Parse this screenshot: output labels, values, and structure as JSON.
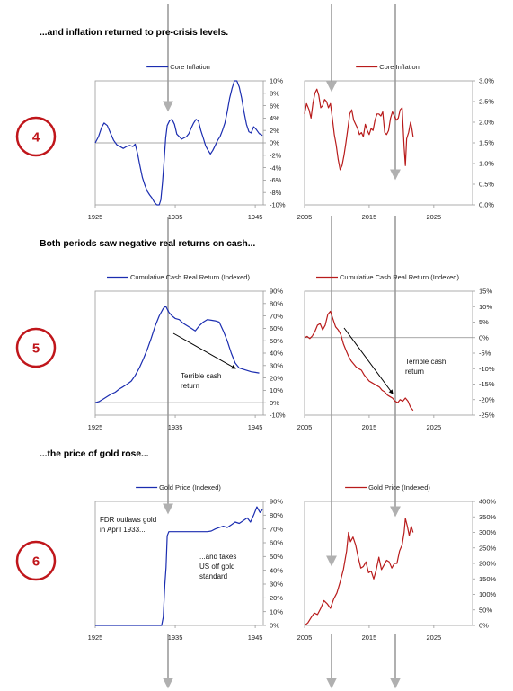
{
  "headings": {
    "h1": "...and inflation returned to pre-crisis levels.",
    "h2": "Both periods saw negative real returns on cash...",
    "h3": "...the price of gold rose..."
  },
  "badges": [
    "4",
    "5",
    "6"
  ],
  "colors": {
    "left": "#1b2db0",
    "right": "#b81b1b",
    "guide": "#b0b0b0",
    "badge": "#c0161b"
  },
  "chart_data": [
    {
      "id": "core-1930s",
      "type": "line",
      "series": [
        {
          "name": "Core Inflation"
        }
      ],
      "xlabels": [
        "1925",
        "1935",
        "1945"
      ],
      "xlim": [
        1925,
        1946
      ],
      "yticks": [
        "10%",
        "8%",
        "6%",
        "4%",
        "2%",
        "0%",
        "-2%",
        "-4%",
        "-6%",
        "-8%",
        "-10%"
      ],
      "ylim": [
        -10,
        10
      ],
      "zero_line": true,
      "points": [
        [
          1925.0,
          0.0
        ],
        [
          1925.4,
          1.0
        ],
        [
          1925.8,
          2.5
        ],
        [
          1926.1,
          3.2
        ],
        [
          1926.5,
          2.8
        ],
        [
          1926.9,
          1.6
        ],
        [
          1927.3,
          0.4
        ],
        [
          1927.7,
          -0.3
        ],
        [
          1928.1,
          -0.6
        ],
        [
          1928.5,
          -0.9
        ],
        [
          1928.9,
          -0.6
        ],
        [
          1929.3,
          -0.4
        ],
        [
          1929.7,
          -0.6
        ],
        [
          1930.0,
          -0.2
        ],
        [
          1930.3,
          -1.8
        ],
        [
          1930.6,
          -3.8
        ],
        [
          1930.9,
          -5.6
        ],
        [
          1931.2,
          -6.8
        ],
        [
          1931.5,
          -7.8
        ],
        [
          1931.8,
          -8.4
        ],
        [
          1932.1,
          -8.9
        ],
        [
          1932.4,
          -9.6
        ],
        [
          1932.7,
          -10.0
        ],
        [
          1933.0,
          -10.0
        ],
        [
          1933.2,
          -9.2
        ],
        [
          1933.4,
          -6.5
        ],
        [
          1933.6,
          -3.0
        ],
        [
          1933.8,
          0.8
        ],
        [
          1934.0,
          2.8
        ],
        [
          1934.3,
          3.6
        ],
        [
          1934.6,
          3.8
        ],
        [
          1934.9,
          3.0
        ],
        [
          1935.2,
          1.4
        ],
        [
          1935.5,
          1.0
        ],
        [
          1935.8,
          0.6
        ],
        [
          1936.1,
          0.8
        ],
        [
          1936.4,
          1.0
        ],
        [
          1936.7,
          1.5
        ],
        [
          1937.0,
          2.4
        ],
        [
          1937.3,
          3.2
        ],
        [
          1937.6,
          3.8
        ],
        [
          1937.9,
          3.5
        ],
        [
          1938.2,
          2.0
        ],
        [
          1938.5,
          0.8
        ],
        [
          1938.8,
          -0.5
        ],
        [
          1939.1,
          -1.2
        ],
        [
          1939.4,
          -1.8
        ],
        [
          1939.7,
          -1.2
        ],
        [
          1940.0,
          -0.4
        ],
        [
          1940.3,
          0.4
        ],
        [
          1940.6,
          1.0
        ],
        [
          1940.9,
          2.0
        ],
        [
          1941.2,
          3.2
        ],
        [
          1941.5,
          5.0
        ],
        [
          1941.8,
          7.2
        ],
        [
          1942.1,
          8.8
        ],
        [
          1942.4,
          10.0
        ],
        [
          1942.7,
          10.0
        ],
        [
          1943.0,
          9.0
        ],
        [
          1943.3,
          7.2
        ],
        [
          1943.6,
          5.0
        ],
        [
          1943.9,
          3.0
        ],
        [
          1944.2,
          1.8
        ],
        [
          1944.5,
          1.6
        ],
        [
          1944.8,
          2.6
        ],
        [
          1945.1,
          2.2
        ],
        [
          1945.5,
          1.5
        ],
        [
          1945.9,
          1.2
        ]
      ]
    },
    {
      "id": "core-2000s",
      "type": "line",
      "series": [
        {
          "name": "Core Inflation"
        }
      ],
      "xlabels": [
        "2005",
        "2015",
        "2025"
      ],
      "xlim": [
        2005,
        2031
      ],
      "yticks": [
        "3.0%",
        "2.5%",
        "2.0%",
        "1.5%",
        "1.0%",
        "0.5%",
        "0.0%"
      ],
      "ylim": [
        0,
        3
      ],
      "zero_line": false,
      "points": [
        [
          2005.0,
          2.2
        ],
        [
          2005.3,
          2.45
        ],
        [
          2005.7,
          2.3
        ],
        [
          2006.0,
          2.1
        ],
        [
          2006.3,
          2.45
        ],
        [
          2006.6,
          2.7
        ],
        [
          2006.9,
          2.8
        ],
        [
          2007.2,
          2.65
        ],
        [
          2007.5,
          2.35
        ],
        [
          2007.8,
          2.4
        ],
        [
          2008.1,
          2.55
        ],
        [
          2008.4,
          2.5
        ],
        [
          2008.7,
          2.35
        ],
        [
          2009.0,
          2.45
        ],
        [
          2009.3,
          2.1
        ],
        [
          2009.6,
          1.7
        ],
        [
          2009.9,
          1.45
        ],
        [
          2010.2,
          1.1
        ],
        [
          2010.5,
          0.85
        ],
        [
          2010.8,
          0.95
        ],
        [
          2011.1,
          1.2
        ],
        [
          2011.4,
          1.5
        ],
        [
          2011.7,
          1.85
        ],
        [
          2012.0,
          2.2
        ],
        [
          2012.3,
          2.3
        ],
        [
          2012.6,
          2.05
        ],
        [
          2012.9,
          1.95
        ],
        [
          2013.2,
          1.85
        ],
        [
          2013.5,
          1.7
        ],
        [
          2013.8,
          1.75
        ],
        [
          2014.1,
          1.65
        ],
        [
          2014.4,
          1.95
        ],
        [
          2014.7,
          1.8
        ],
        [
          2015.0,
          1.7
        ],
        [
          2015.3,
          1.85
        ],
        [
          2015.6,
          1.8
        ],
        [
          2015.9,
          2.05
        ],
        [
          2016.2,
          2.2
        ],
        [
          2016.5,
          2.2
        ],
        [
          2016.8,
          2.15
        ],
        [
          2017.1,
          2.25
        ],
        [
          2017.4,
          1.75
        ],
        [
          2017.7,
          1.7
        ],
        [
          2018.0,
          1.8
        ],
        [
          2018.3,
          2.1
        ],
        [
          2018.6,
          2.25
        ],
        [
          2018.9,
          2.15
        ],
        [
          2019.2,
          2.05
        ],
        [
          2019.5,
          2.1
        ],
        [
          2019.8,
          2.3
        ],
        [
          2020.1,
          2.35
        ],
        [
          2020.4,
          1.4
        ],
        [
          2020.6,
          0.95
        ],
        [
          2020.8,
          1.6
        ],
        [
          2021.1,
          1.75
        ],
        [
          2021.4,
          2.0
        ],
        [
          2021.6,
          1.85
        ],
        [
          2021.8,
          1.65
        ]
      ]
    },
    {
      "id": "cash-1930s",
      "type": "line",
      "series": [
        {
          "name": "Cumulative Cash Real Return (Indexed)"
        }
      ],
      "xlabels": [
        "1925",
        "1935",
        "1945"
      ],
      "xlim": [
        1925,
        1946
      ],
      "yticks": [
        "90%",
        "80%",
        "70%",
        "60%",
        "50%",
        "40%",
        "30%",
        "20%",
        "10%",
        "0%",
        "-10%"
      ],
      "ylim": [
        -10,
        90
      ],
      "zero_line": true,
      "annotation": "Terrible cash return",
      "points": [
        [
          1925.0,
          0.0
        ],
        [
          1925.5,
          1.0
        ],
        [
          1926.0,
          3.0
        ],
        [
          1926.5,
          5.0
        ],
        [
          1927.0,
          7.0
        ],
        [
          1927.5,
          8.5
        ],
        [
          1928.0,
          11.0
        ],
        [
          1928.5,
          13.0
        ],
        [
          1929.0,
          15.0
        ],
        [
          1929.5,
          17.5
        ],
        [
          1930.0,
          22.0
        ],
        [
          1930.5,
          28.0
        ],
        [
          1931.0,
          35.0
        ],
        [
          1931.5,
          43.0
        ],
        [
          1932.0,
          52.0
        ],
        [
          1932.5,
          62.0
        ],
        [
          1933.0,
          70.0
        ],
        [
          1933.5,
          76.0
        ],
        [
          1933.8,
          78.0
        ],
        [
          1934.2,
          73.0
        ],
        [
          1934.6,
          70.0
        ],
        [
          1935.0,
          68.0
        ],
        [
          1935.5,
          67.0
        ],
        [
          1936.0,
          64.0
        ],
        [
          1936.5,
          62.0
        ],
        [
          1937.0,
          60.0
        ],
        [
          1937.5,
          58.0
        ],
        [
          1938.0,
          62.0
        ],
        [
          1938.5,
          65.0
        ],
        [
          1939.0,
          67.0
        ],
        [
          1939.5,
          66.5
        ],
        [
          1940.0,
          66.0
        ],
        [
          1940.5,
          65.0
        ],
        [
          1941.0,
          58.0
        ],
        [
          1941.5,
          50.0
        ],
        [
          1942.0,
          40.0
        ],
        [
          1942.5,
          32.0
        ],
        [
          1943.0,
          28.0
        ],
        [
          1943.5,
          27.0
        ],
        [
          1944.0,
          26.0
        ],
        [
          1944.5,
          25.0
        ],
        [
          1945.0,
          24.5
        ],
        [
          1945.5,
          24.0
        ]
      ]
    },
    {
      "id": "cash-2000s",
      "type": "line",
      "series": [
        {
          "name": "Cumulative Cash Real Return (Indexed)"
        }
      ],
      "xlabels": [
        "2005",
        "2015",
        "2025"
      ],
      "xlim": [
        2005,
        2031
      ],
      "yticks": [
        "15%",
        "10%",
        "5%",
        "0%",
        "-5%",
        "-10%",
        "-15%",
        "-20%",
        "-25%"
      ],
      "ylim": [
        -25,
        15
      ],
      "zero_line": true,
      "annotation": "Terrible cash return",
      "points": [
        [
          2005.0,
          0.0
        ],
        [
          2005.4,
          0.4
        ],
        [
          2005.8,
          -0.3
        ],
        [
          2006.2,
          0.5
        ],
        [
          2006.6,
          2.0
        ],
        [
          2007.0,
          4.0
        ],
        [
          2007.4,
          4.5
        ],
        [
          2007.8,
          2.5
        ],
        [
          2008.2,
          4.0
        ],
        [
          2008.6,
          7.5
        ],
        [
          2009.0,
          8.5
        ],
        [
          2009.4,
          6.0
        ],
        [
          2009.8,
          3.5
        ],
        [
          2010.2,
          2.5
        ],
        [
          2010.6,
          1.0
        ],
        [
          2011.0,
          -2.0
        ],
        [
          2011.4,
          -4.0
        ],
        [
          2011.8,
          -6.0
        ],
        [
          2012.2,
          -7.5
        ],
        [
          2012.6,
          -8.5
        ],
        [
          2013.0,
          -9.5
        ],
        [
          2013.4,
          -10.0
        ],
        [
          2013.8,
          -10.5
        ],
        [
          2014.2,
          -12.0
        ],
        [
          2014.6,
          -13.0
        ],
        [
          2015.0,
          -14.0
        ],
        [
          2015.4,
          -14.5
        ],
        [
          2015.8,
          -15.0
        ],
        [
          2016.2,
          -15.5
        ],
        [
          2016.6,
          -16.0
        ],
        [
          2017.0,
          -17.0
        ],
        [
          2017.4,
          -17.5
        ],
        [
          2017.8,
          -18.5
        ],
        [
          2018.2,
          -19.0
        ],
        [
          2018.6,
          -19.5
        ],
        [
          2019.0,
          -20.5
        ],
        [
          2019.4,
          -21.0
        ],
        [
          2019.8,
          -20.0
        ],
        [
          2020.2,
          -20.5
        ],
        [
          2020.6,
          -19.5
        ],
        [
          2021.0,
          -20.5
        ],
        [
          2021.4,
          -22.5
        ],
        [
          2021.8,
          -23.5
        ]
      ]
    },
    {
      "id": "gold-1930s",
      "type": "line",
      "series": [
        {
          "name": "Gold Price (Indexed)"
        }
      ],
      "xlabels": [
        "1925",
        "1935",
        "1945"
      ],
      "xlim": [
        1925,
        1946
      ],
      "yticks": [
        "90%",
        "80%",
        "70%",
        "60%",
        "50%",
        "40%",
        "30%",
        "20%",
        "10%",
        "0%"
      ],
      "ylim": [
        0,
        90
      ],
      "zero_line": false,
      "annotations": [
        "FDR outlaws gold in April 1933...",
        "...and takes US off gold standard"
      ],
      "points": [
        [
          1925.0,
          0.0
        ],
        [
          1933.3,
          0.0
        ],
        [
          1933.5,
          6.0
        ],
        [
          1933.7,
          30.0
        ],
        [
          1933.85,
          42.0
        ],
        [
          1934.0,
          65.0
        ],
        [
          1934.2,
          68.0
        ],
        [
          1935.0,
          68.0
        ],
        [
          1936.0,
          68.0
        ],
        [
          1937.0,
          68.0
        ],
        [
          1938.0,
          68.0
        ],
        [
          1939.0,
          68.0
        ],
        [
          1939.5,
          68.5
        ],
        [
          1940.0,
          70.0
        ],
        [
          1940.5,
          71.0
        ],
        [
          1941.0,
          72.0
        ],
        [
          1941.5,
          71.0
        ],
        [
          1942.0,
          73.0
        ],
        [
          1942.5,
          75.0
        ],
        [
          1943.0,
          74.0
        ],
        [
          1943.5,
          76.0
        ],
        [
          1944.0,
          78.0
        ],
        [
          1944.4,
          75.0
        ],
        [
          1944.8,
          80.0
        ],
        [
          1945.2,
          86.0
        ],
        [
          1945.6,
          82.0
        ],
        [
          1945.9,
          84.0
        ]
      ]
    },
    {
      "id": "gold-2000s",
      "type": "line",
      "series": [
        {
          "name": "Gold Price (Indexed)"
        }
      ],
      "xlabels": [
        "2005",
        "2015",
        "2025"
      ],
      "xlim": [
        2005,
        2031
      ],
      "yticks": [
        "400%",
        "350%",
        "300%",
        "250%",
        "200%",
        "150%",
        "100%",
        "50%",
        "0%"
      ],
      "ylim": [
        0,
        400
      ],
      "zero_line": false,
      "points": [
        [
          2005.0,
          0.0
        ],
        [
          2005.5,
          8.0
        ],
        [
          2006.0,
          25.0
        ],
        [
          2006.5,
          40.0
        ],
        [
          2007.0,
          35.0
        ],
        [
          2007.5,
          55.0
        ],
        [
          2008.0,
          80.0
        ],
        [
          2008.5,
          70.0
        ],
        [
          2009.0,
          55.0
        ],
        [
          2009.5,
          85.0
        ],
        [
          2010.0,
          105.0
        ],
        [
          2010.5,
          140.0
        ],
        [
          2011.0,
          180.0
        ],
        [
          2011.5,
          240.0
        ],
        [
          2011.8,
          300.0
        ],
        [
          2012.1,
          270.0
        ],
        [
          2012.5,
          285.0
        ],
        [
          2012.9,
          260.0
        ],
        [
          2013.3,
          220.0
        ],
        [
          2013.7,
          185.0
        ],
        [
          2014.1,
          190.0
        ],
        [
          2014.5,
          205.0
        ],
        [
          2014.9,
          170.0
        ],
        [
          2015.3,
          175.0
        ],
        [
          2015.7,
          150.0
        ],
        [
          2016.1,
          180.0
        ],
        [
          2016.5,
          220.0
        ],
        [
          2016.9,
          180.0
        ],
        [
          2017.3,
          195.0
        ],
        [
          2017.7,
          210.0
        ],
        [
          2018.1,
          205.0
        ],
        [
          2018.5,
          185.0
        ],
        [
          2018.9,
          200.0
        ],
        [
          2019.3,
          200.0
        ],
        [
          2019.7,
          240.0
        ],
        [
          2020.1,
          260.0
        ],
        [
          2020.4,
          300.0
        ],
        [
          2020.6,
          345.0
        ],
        [
          2020.9,
          320.0
        ],
        [
          2021.2,
          290.0
        ],
        [
          2021.5,
          320.0
        ],
        [
          2021.8,
          300.0
        ]
      ]
    }
  ]
}
